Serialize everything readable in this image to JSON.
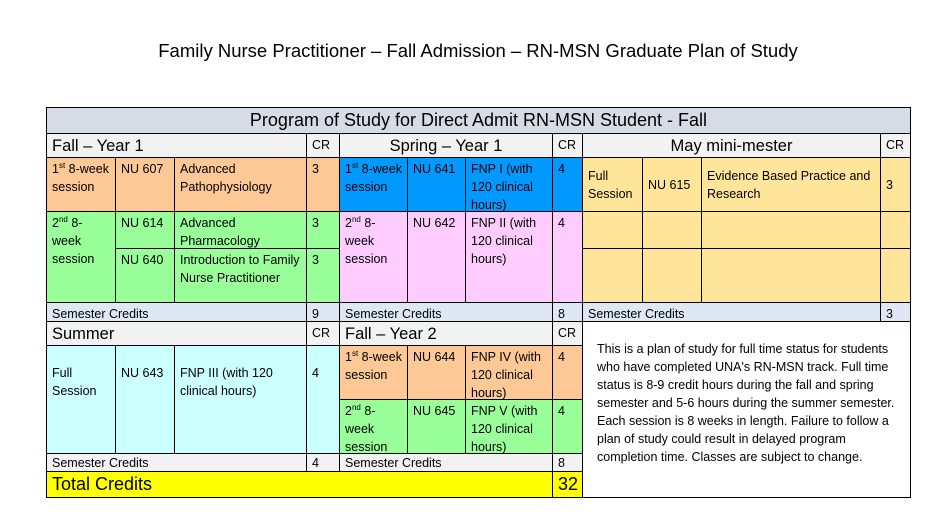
{
  "document_title": "Family Nurse Practitioner – Fall Admission – RN-MSN Graduate Plan of Study",
  "table": {
    "title": "Program of Study for Direct Admit RN-MSN Student - Fall",
    "cr_label": "CR",
    "semester_credits_label": "Semester Credits",
    "colors": {
      "title_bg": "#d6dce5",
      "header_bg": "#f2f2f2",
      "credits_bg": "#dde8f4",
      "orange": "#fcc896",
      "green": "#99ff99",
      "blue": "#0099ff",
      "pink": "#ffccff",
      "tan": "#ffe599",
      "cyan": "#ccffff",
      "total": "#ffff00"
    },
    "fall1": {
      "heading": "Fall – Year 1",
      "rows": [
        {
          "ord": "1",
          "sup": "st",
          "session": " 8-week session",
          "code": "NU 607",
          "course": "Advanced Pathophysiology",
          "cr": "3"
        },
        {
          "ord": "2",
          "sup": "nd",
          "session": " 8-week session",
          "code": "NU 614",
          "course": "Advanced Pharmacology",
          "cr": "3"
        },
        {
          "code": "NU 640",
          "course": "Introduction to Family Nurse Practitioner",
          "cr": "3"
        }
      ],
      "semester_credits": "9"
    },
    "spring1": {
      "heading": "Spring – Year 1",
      "rows": [
        {
          "ord": "1",
          "sup": "st",
          "session": " 8-week session",
          "code": "NU 641",
          "course": "FNP I (with 120 clinical hours)",
          "cr": "4"
        },
        {
          "ord": "2",
          "sup": "nd",
          "session": " 8-week session",
          "code": "NU 642",
          "course": "FNP II (with 120 clinical hours)",
          "cr": "4"
        }
      ],
      "semester_credits": "8"
    },
    "may": {
      "heading": "May mini-mester",
      "rows": [
        {
          "session": "Full Session",
          "code": "NU 615",
          "course": "Evidence Based Practice and Research",
          "cr": "3"
        }
      ],
      "semester_credits": "3"
    },
    "summer": {
      "heading": "Summer",
      "rows": [
        {
          "session": "Full Session",
          "code": "NU 643",
          "course": "FNP III (with 120 clinical hours)",
          "cr": "4"
        }
      ],
      "semester_credits": "4"
    },
    "fall2": {
      "heading": "Fall – Year 2",
      "rows": [
        {
          "ord": "1",
          "sup": "st",
          "session": " 8-week session",
          "code": "NU 644",
          "course": "FNP IV (with 120 clinical hours)",
          "cr": "4"
        },
        {
          "ord": "2",
          "sup": "nd",
          "session": " 8-week session",
          "code": "NU 645",
          "course": "FNP V (with 120 clinical hours)",
          "cr": "4"
        }
      ],
      "semester_credits": "8"
    },
    "total_label": "Total Credits",
    "total_value": "32",
    "note": "This is a plan of study for full time status for students who have completed UNA's RN-MSN track.  Full time status is 8-9 credit hours during the fall and spring semester and 5-6 hours during the summer semester.  Each session is 8 weeks in length.  Failure to follow a plan of study could result in delayed program completion time.  Classes are subject to change."
  }
}
